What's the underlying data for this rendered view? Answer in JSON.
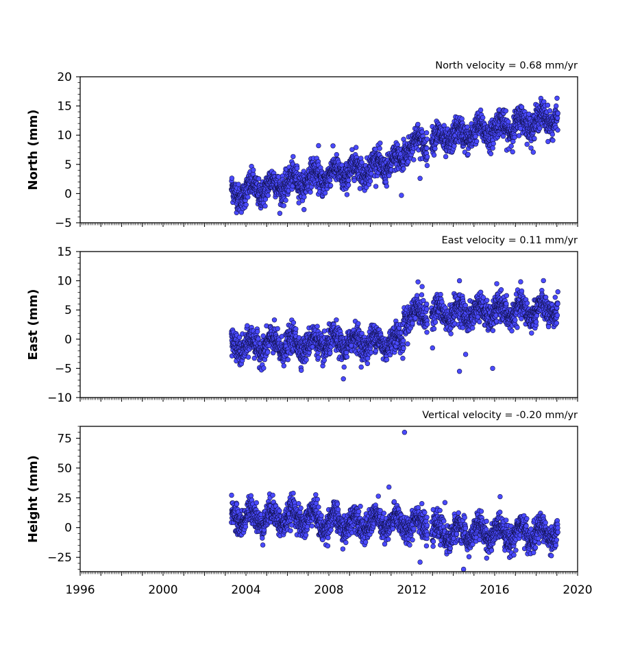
{
  "chart_data": [
    {
      "type": "scatter",
      "component": "north",
      "annotation": "North velocity = 0.68 mm/yr",
      "ylabel": "North (mm)",
      "xlim": [
        1996,
        2020
      ],
      "ylim": [
        -5,
        20
      ],
      "yticks": [
        -5,
        0,
        5,
        10,
        15,
        20
      ],
      "ytick_labels": [
        "−5",
        "0",
        "5",
        "10",
        "15",
        "20"
      ],
      "x_start": 2003.3,
      "x_end": 2019.05,
      "trend": {
        "slope": 0.68,
        "at_x": 2003.4,
        "value": 0.0
      },
      "offsets": [
        {
          "x": 2011.6,
          "jump": 2.5
        }
      ],
      "outliers": [
        [
          2007.5,
          8.2
        ],
        [
          2012.4,
          2.6
        ],
        [
          2011.5,
          -0.3
        ]
      ],
      "marker_color": "#4a4aff",
      "marker_edge": "#10104a",
      "grid": false
    },
    {
      "type": "scatter",
      "component": "east",
      "annotation": "East velocity = 0.11 mm/yr",
      "ylabel": "East (mm)",
      "xlim": [
        1996,
        2020
      ],
      "ylim": [
        -10,
        15
      ],
      "yticks": [
        -10,
        -5,
        0,
        5,
        10,
        15
      ],
      "ytick_labels": [
        "−10",
        "−5",
        "0",
        "5",
        "10",
        "15"
      ],
      "x_start": 2003.3,
      "x_end": 2019.05,
      "trend": {
        "slope": 0.11,
        "at_x": 2003.4,
        "value": -1.2
      },
      "offsets": [
        {
          "x": 2011.6,
          "jump": 4.5
        }
      ],
      "outliers": [
        [
          2012.3,
          9.8
        ],
        [
          2014.3,
          10.0
        ],
        [
          2014.3,
          -5.5
        ],
        [
          2015.9,
          -5.0
        ],
        [
          2013.0,
          -1.5
        ],
        [
          2014.6,
          -2.6
        ],
        [
          2008.7,
          -6.8
        ],
        [
          2012.5,
          9.0
        ]
      ],
      "marker_color": "#4a4aff",
      "marker_edge": "#10104a",
      "grid": false
    },
    {
      "type": "scatter",
      "component": "height",
      "annotation": "Vertical velocity = -0.20 mm/yr",
      "ylabel": "Height (mm)",
      "xlim": [
        1996,
        2020
      ],
      "ylim": [
        -37,
        85
      ],
      "yticks": [
        -25,
        0,
        25,
        50,
        75
      ],
      "ytick_labels": [
        "−25",
        "0",
        "25",
        "50",
        "75"
      ],
      "x_start": 2003.3,
      "x_end": 2019.05,
      "trend": {
        "slope": -0.2,
        "at_x": 2003.4,
        "value": 5.0
      },
      "offsets": [
        {
          "x": 2012.9,
          "jump": -7.0
        }
      ],
      "outliers": [
        [
          2011.65,
          80.0
        ],
        [
          2010.9,
          34.0
        ],
        [
          2012.4,
          -29.0
        ],
        [
          2014.5,
          -35.0
        ],
        [
          2013.6,
          21.0
        ]
      ],
      "marker_color": "#4a4aff",
      "marker_edge": "#10104a",
      "grid": false
    }
  ],
  "x_axis": {
    "ticks": [
      1996,
      2000,
      2004,
      2008,
      2012,
      2016,
      2020
    ],
    "tick_labels": [
      "1996",
      "2000",
      "2004",
      "2008",
      "2012",
      "2016",
      "2020"
    ]
  }
}
